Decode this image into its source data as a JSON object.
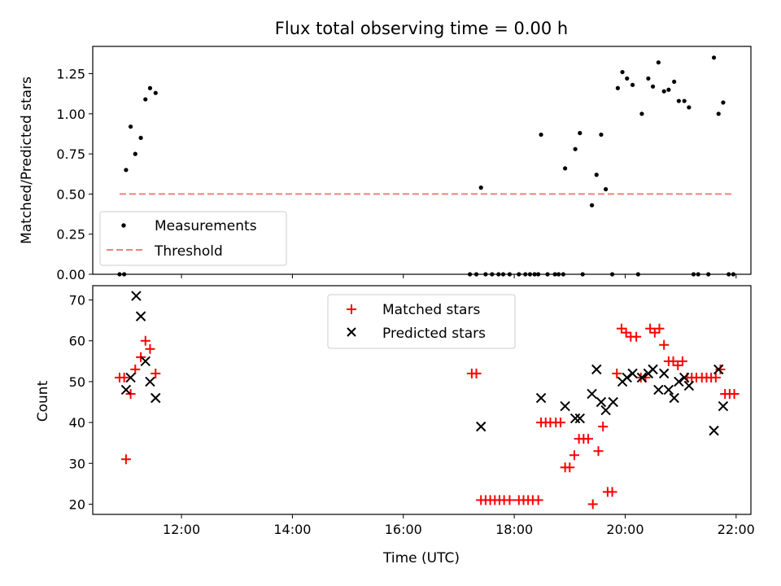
{
  "chart_data": [
    {
      "type": "scatter",
      "title": "Flux total observing time = 0.00 h",
      "ylabel": "Matched/Predicted stars",
      "xlabel": "",
      "xlim": [
        "10:24",
        "22:16"
      ],
      "ylim": [
        0,
        1.42
      ],
      "yticks": [
        "0.00",
        "0.25",
        "0.50",
        "0.75",
        "1.00",
        "1.25"
      ],
      "grid": false,
      "legend_position": "lower-left",
      "series": [
        {
          "name": "Measurements",
          "marker": "dot",
          "color": "#000000",
          "points": [
            [
              "10:53",
              0
            ],
            [
              "10:58",
              0
            ],
            [
              "11:00",
              0.65
            ],
            [
              "11:05",
              0.92
            ],
            [
              "11:10",
              0.75
            ],
            [
              "11:16",
              0.85
            ],
            [
              "11:21",
              1.09
            ],
            [
              "11:26",
              1.16
            ],
            [
              "11:32",
              1.13
            ],
            [
              "17:24",
              0.54
            ],
            [
              "17:12",
              0
            ],
            [
              "17:19",
              0
            ],
            [
              "17:29",
              0
            ],
            [
              "17:36",
              0
            ],
            [
              "17:43",
              0
            ],
            [
              "17:48",
              0
            ],
            [
              "17:55",
              0
            ],
            [
              "18:05",
              0
            ],
            [
              "18:12",
              0
            ],
            [
              "18:17",
              0
            ],
            [
              "18:22",
              0
            ],
            [
              "18:26",
              0
            ],
            [
              "18:29",
              0.87
            ],
            [
              "18:36",
              0
            ],
            [
              "18:44",
              0
            ],
            [
              "18:48",
              0
            ],
            [
              "18:53",
              0
            ],
            [
              "18:55",
              0.66
            ],
            [
              "19:06",
              0.78
            ],
            [
              "19:11",
              0.88
            ],
            [
              "19:14",
              0
            ],
            [
              "19:24",
              0.43
            ],
            [
              "19:29",
              0.62
            ],
            [
              "19:34",
              0.87
            ],
            [
              "19:39",
              0.53
            ],
            [
              "19:46",
              0
            ],
            [
              "19:52",
              1.16
            ],
            [
              "19:57",
              1.26
            ],
            [
              "20:02",
              1.22
            ],
            [
              "20:08",
              1.18
            ],
            [
              "20:14",
              0
            ],
            [
              "20:18",
              1.0
            ],
            [
              "20:25",
              1.22
            ],
            [
              "20:30",
              1.17
            ],
            [
              "20:36",
              1.32
            ],
            [
              "20:42",
              1.14
            ],
            [
              "20:47",
              1.15
            ],
            [
              "20:53",
              1.2
            ],
            [
              "20:58",
              1.08
            ],
            [
              "21:04",
              1.08
            ],
            [
              "21:09",
              1.04
            ],
            [
              "21:14",
              0
            ],
            [
              "21:19",
              0
            ],
            [
              "21:30",
              0
            ],
            [
              "21:36",
              1.35
            ],
            [
              "21:41",
              1.0
            ],
            [
              "21:46",
              1.07
            ],
            [
              "21:52",
              0
            ],
            [
              "21:57",
              0
            ]
          ]
        },
        {
          "name": "Threshold",
          "style": "dashed",
          "color": "#f08080",
          "points": [
            [
              "10:53",
              0.5
            ],
            [
              "21:57",
              0.5
            ]
          ]
        }
      ]
    },
    {
      "type": "scatter",
      "title": "",
      "ylabel": "Count",
      "xlabel": "Time (UTC)",
      "xlim": [
        "10:24",
        "22:16"
      ],
      "ylim": [
        17.5,
        73.5
      ],
      "xticks": [
        "12:00",
        "14:00",
        "16:00",
        "18:00",
        "20:00",
        "22:00"
      ],
      "yticks": [
        "20",
        "30",
        "40",
        "50",
        "60",
        "70"
      ],
      "grid": false,
      "legend_position": "upper-center",
      "series": [
        {
          "name": "Matched stars",
          "marker": "plus",
          "color": "#ff0000",
          "points": [
            [
              "10:53",
              51
            ],
            [
              "10:58",
              51
            ],
            [
              "11:00",
              31
            ],
            [
              "11:05",
              47
            ],
            [
              "11:10",
              53
            ],
            [
              "11:16",
              56
            ],
            [
              "11:21",
              60
            ],
            [
              "11:26",
              58
            ],
            [
              "11:32",
              52
            ],
            [
              "17:14",
              52
            ],
            [
              "17:19",
              52
            ],
            [
              "17:24",
              21
            ],
            [
              "17:29",
              21
            ],
            [
              "17:34",
              21
            ],
            [
              "17:39",
              21
            ],
            [
              "17:44",
              21
            ],
            [
              "17:49",
              21
            ],
            [
              "17:55",
              21
            ],
            [
              "18:05",
              21
            ],
            [
              "18:10",
              21
            ],
            [
              "18:15",
              21
            ],
            [
              "18:20",
              21
            ],
            [
              "18:26",
              21
            ],
            [
              "18:29",
              40
            ],
            [
              "18:34",
              40
            ],
            [
              "18:39",
              40
            ],
            [
              "18:45",
              40
            ],
            [
              "18:50",
              40
            ],
            [
              "18:55",
              29
            ],
            [
              "19:00",
              29
            ],
            [
              "19:05",
              32
            ],
            [
              "19:10",
              36
            ],
            [
              "19:15",
              36
            ],
            [
              "19:20",
              36
            ],
            [
              "19:25",
              20
            ],
            [
              "19:31",
              33
            ],
            [
              "19:36",
              39
            ],
            [
              "19:41",
              23
            ],
            [
              "19:46",
              23
            ],
            [
              "19:51",
              52
            ],
            [
              "19:56",
              63
            ],
            [
              "20:01",
              62
            ],
            [
              "20:06",
              61
            ],
            [
              "20:12",
              61
            ],
            [
              "20:17",
              51
            ],
            [
              "20:22",
              51
            ],
            [
              "20:27",
              63
            ],
            [
              "20:32",
              62
            ],
            [
              "20:37",
              63
            ],
            [
              "20:42",
              59
            ],
            [
              "20:47",
              55
            ],
            [
              "20:52",
              55
            ],
            [
              "20:57",
              54
            ],
            [
              "21:02",
              55
            ],
            [
              "21:07",
              51
            ],
            [
              "21:12",
              51
            ],
            [
              "21:17",
              51
            ],
            [
              "21:23",
              51
            ],
            [
              "21:28",
              51
            ],
            [
              "21:33",
              51
            ],
            [
              "21:38",
              51
            ],
            [
              "21:43",
              53
            ],
            [
              "21:48",
              47
            ],
            [
              "21:53",
              47
            ],
            [
              "21:58",
              47
            ]
          ]
        },
        {
          "name": "Predicted stars",
          "marker": "x",
          "color": "#000000",
          "points": [
            [
              "11:00",
              48
            ],
            [
              "11:05",
              51
            ],
            [
              "11:11",
              71
            ],
            [
              "11:16",
              66
            ],
            [
              "11:21",
              55
            ],
            [
              "11:26",
              50
            ],
            [
              "11:32",
              46
            ],
            [
              "17:24",
              39
            ],
            [
              "18:29",
              46
            ],
            [
              "18:55",
              44
            ],
            [
              "19:06",
              41
            ],
            [
              "19:11",
              41
            ],
            [
              "19:24",
              47
            ],
            [
              "19:29",
              53
            ],
            [
              "19:34",
              45
            ],
            [
              "19:39",
              43
            ],
            [
              "19:47",
              45
            ],
            [
              "19:57",
              50
            ],
            [
              "20:02",
              51
            ],
            [
              "20:08",
              52
            ],
            [
              "20:18",
              51
            ],
            [
              "20:25",
              52
            ],
            [
              "20:30",
              53
            ],
            [
              "20:36",
              48
            ],
            [
              "20:42",
              52
            ],
            [
              "20:47",
              48
            ],
            [
              "20:53",
              46
            ],
            [
              "20:58",
              50
            ],
            [
              "21:04",
              51
            ],
            [
              "21:09",
              49
            ],
            [
              "21:36",
              38
            ],
            [
              "21:41",
              53
            ],
            [
              "21:46",
              44
            ]
          ]
        }
      ]
    }
  ]
}
